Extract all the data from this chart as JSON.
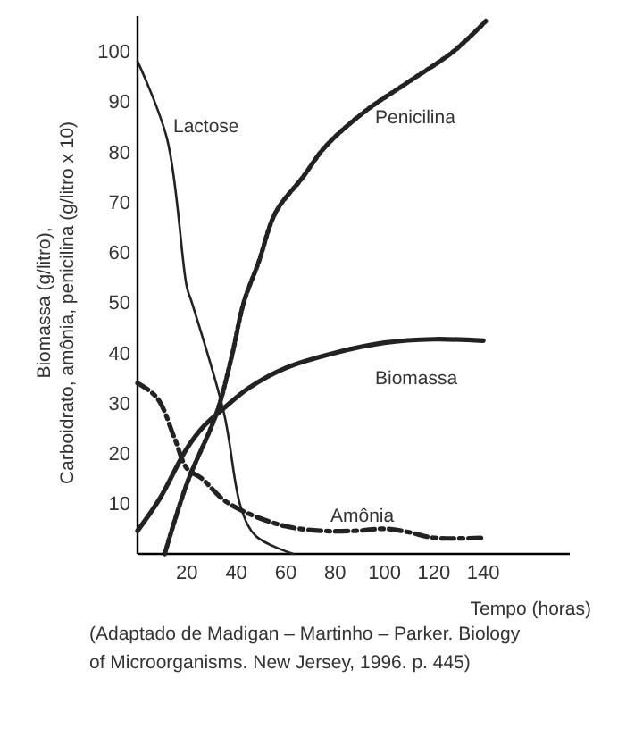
{
  "chart_data": {
    "type": "line",
    "xlabel": "Tempo (horas)",
    "ylabel": "Biomassa (g/litro),\nCarboidrato, amônia, penicilina (g/litro x 10)",
    "xlim": [
      0,
      175
    ],
    "xticks": [
      20,
      40,
      60,
      80,
      100,
      120,
      140
    ],
    "ylim": [
      0,
      107
    ],
    "yticks": [
      10,
      20,
      30,
      40,
      50,
      60,
      70,
      80,
      90,
      100
    ],
    "series": [
      {
        "name": "Lactose",
        "color": "#222222",
        "line_style": "solid",
        "x": [
          0,
          12,
          20,
          22,
          35,
          42,
          48,
          63
        ],
        "values": [
          98,
          82.5,
          53,
          50,
          28,
          9,
          3.5,
          0
        ]
      },
      {
        "name": "Penicilina",
        "color": "#222222",
        "line_style": "dotted",
        "x": [
          11,
          20,
          32,
          38,
          43,
          49,
          56,
          67,
          76,
          92,
          110,
          128,
          141
        ],
        "values": [
          0,
          14,
          28,
          39,
          50,
          58,
          68,
          75,
          81,
          88,
          94,
          100,
          106
        ]
      },
      {
        "name": "Biomassa",
        "color": "#222222",
        "line_style": "solid",
        "x": [
          0,
          9,
          20,
          27,
          35,
          45,
          60,
          80,
          100,
          120,
          140
        ],
        "values": [
          4.6,
          11,
          21,
          25.5,
          29,
          33,
          37,
          40,
          42,
          42.7,
          42.4
        ]
      },
      {
        "name": "Amônia",
        "color": "#222222",
        "line_style": "dashed",
        "x": [
          0,
          8,
          15,
          20,
          26,
          35,
          45,
          60,
          74,
          89,
          100,
          110,
          120,
          140
        ],
        "values": [
          34,
          31,
          23,
          17,
          15,
          10.7,
          8,
          5.5,
          4.6,
          4.6,
          5,
          4.3,
          3.2,
          3.2
        ]
      }
    ],
    "annotations": [
      "(Adaptado de Madigan – Martinho – Parker. Biology of Microorganisms. New Jersey, 1996. p. 445)"
    ]
  }
}
